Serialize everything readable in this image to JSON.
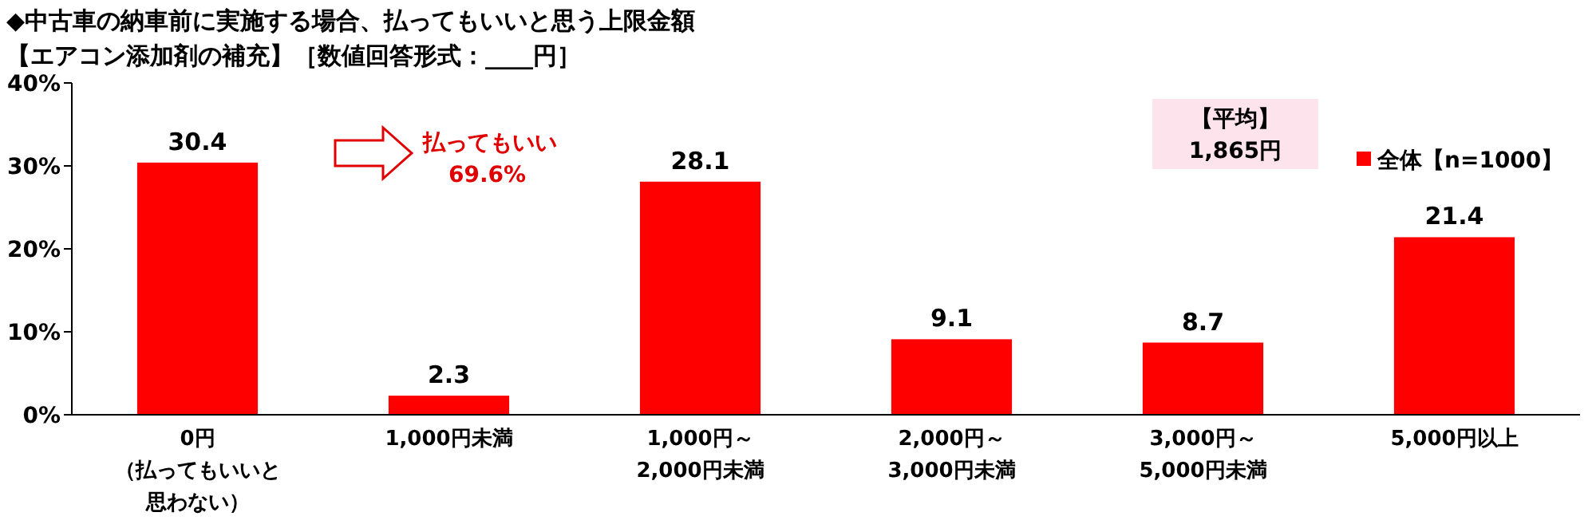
{
  "chart_data": {
    "type": "bar",
    "title": "◆中古車の納車前に実施する場合、払ってもいいと思う上限金額",
    "subtitle": "【エアコン添加剤の補充】［数値回答形式：____円］",
    "categories": [
      "0円（払ってもいいと思わない）",
      "1,000円未満",
      "1,000円～2,000円未満",
      "2,000円～3,000円未満",
      "3,000円～5,000円未満",
      "5,000円以上"
    ],
    "series": [
      {
        "name": "全体【n=1000】",
        "color": "#ff0000",
        "values": [
          30.4,
          2.3,
          28.1,
          9.1,
          8.7,
          21.4
        ]
      }
    ],
    "ylim": [
      0,
      40
    ],
    "yticks": [
      {
        "value": 0,
        "label": "0%"
      },
      {
        "value": 10,
        "label": "10%"
      },
      {
        "value": 20,
        "label": "20%"
      },
      {
        "value": 30,
        "label": "30%"
      },
      {
        "value": 40,
        "label": "40%"
      }
    ],
    "data_labels": true,
    "legend": "top right",
    "annotations": [
      "払ってもいい\n69.6%",
      "【平均】\n1,865円"
    ]
  }
}
